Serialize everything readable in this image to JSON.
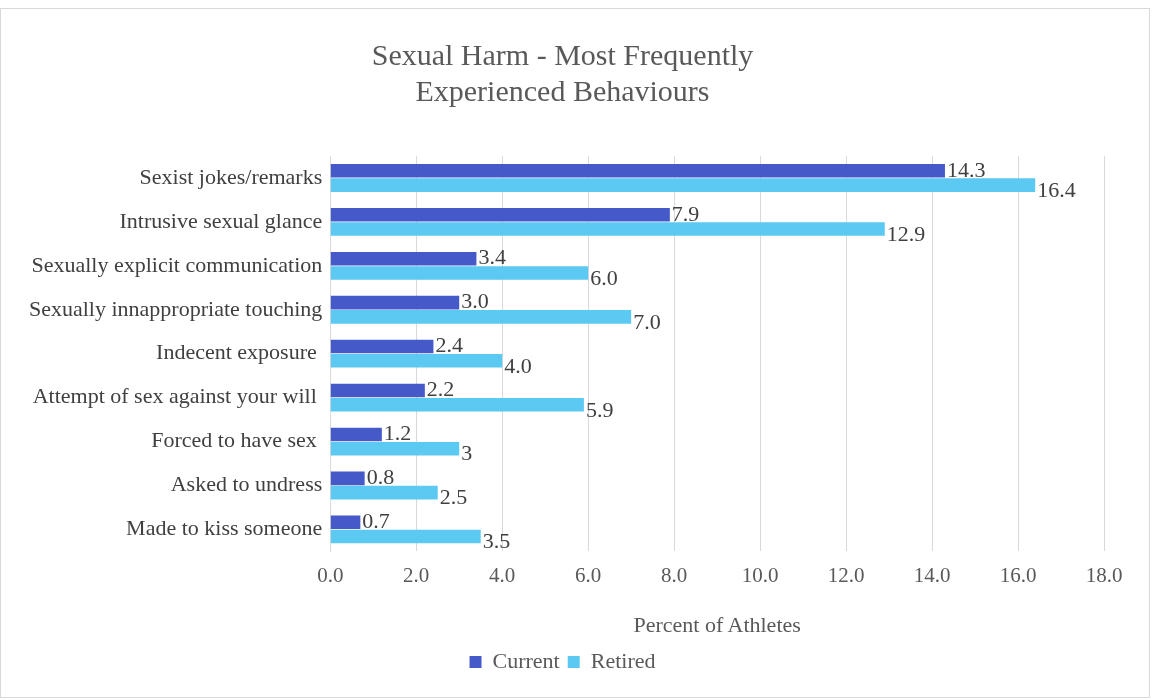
{
  "chart_data": {
    "type": "bar",
    "orientation": "horizontal",
    "title": "Sexual Harm - Most Frequently\nExperienced Behaviours",
    "xlabel": "Percent of Athletes",
    "categories": [
      "Sexist jokes/remarks",
      "Intrusive sexual glance",
      "Sexually explicit communication",
      "Sexually innappropriate touching",
      "Indecent exposure ",
      "Attempt of sex against your will ",
      "Forced to have sex ",
      "Asked to undress",
      "Made to kiss someone"
    ],
    "series": [
      {
        "name": "Current",
        "color": "#4659c8",
        "values": [
          14.3,
          7.9,
          3.4,
          3.0,
          2.4,
          2.2,
          1.2,
          0.8,
          0.7
        ],
        "value_labels": [
          "14.3",
          "7.9",
          "3.4",
          "3.0",
          "2.4",
          "2.2",
          "1.2",
          "0.8",
          "0.7"
        ]
      },
      {
        "name": "Retired",
        "color": "#5bc9f1",
        "values": [
          16.4,
          12.9,
          6.0,
          7.0,
          4.0,
          5.9,
          3,
          2.5,
          3.5
        ],
        "value_labels": [
          "16.4",
          "12.9",
          "6.0",
          "7.0",
          "4.0",
          "5.9",
          "3",
          "2.5",
          "3.5"
        ]
      }
    ],
    "xlim": [
      0,
      18
    ],
    "xticks": [
      {
        "value": 0,
        "label": "0.0"
      },
      {
        "value": 2,
        "label": "2.0"
      },
      {
        "value": 4,
        "label": "4.0"
      },
      {
        "value": 6,
        "label": "6.0"
      },
      {
        "value": 8,
        "label": "8.0"
      },
      {
        "value": 10,
        "label": "10.0"
      },
      {
        "value": 12,
        "label": "12.0"
      },
      {
        "value": 14,
        "label": "14.0"
      },
      {
        "value": 16,
        "label": "16.0"
      },
      {
        "value": 18,
        "label": "18.0"
      }
    ],
    "grid": "x",
    "legend": "bottom"
  }
}
